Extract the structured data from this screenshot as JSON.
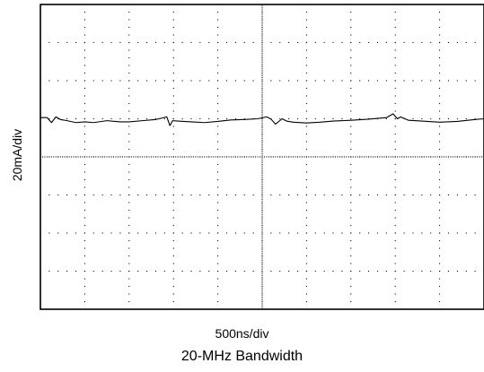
{
  "chart_data": {
    "type": "line",
    "title": "",
    "caption": "20-MHz Bandwidth",
    "xlabel": "500ns/div",
    "ylabel": "20mA/div",
    "x_divisions": 10,
    "y_divisions": 8,
    "xlim": [
      0,
      10
    ],
    "ylim": [
      -4,
      4
    ],
    "grid": true,
    "series": [
      {
        "color": "#000000",
        "x": [
          0.0,
          0.15,
          0.25,
          0.35,
          0.45,
          0.6,
          0.8,
          1.0,
          1.2,
          1.5,
          1.8,
          2.0,
          2.3,
          2.6,
          2.85,
          2.92,
          2.98,
          3.1,
          3.4,
          3.7,
          4.0,
          4.3,
          4.6,
          4.9,
          5.1,
          5.2,
          5.3,
          5.45,
          5.55,
          5.7,
          6.0,
          6.3,
          6.6,
          7.0,
          7.4,
          7.8,
          7.95,
          8.05,
          8.12,
          8.3,
          8.6,
          9.0,
          9.4,
          9.8,
          10.0
        ],
        "values": [
          1.03,
          1.03,
          0.9,
          1.05,
          0.98,
          0.95,
          0.9,
          0.92,
          0.9,
          0.95,
          0.92,
          0.92,
          0.95,
          0.98,
          1.05,
          0.82,
          0.95,
          0.94,
          0.92,
          0.9,
          0.93,
          0.97,
          0.98,
          1.0,
          1.05,
          0.99,
          0.86,
          1.0,
          0.94,
          0.91,
          0.89,
          0.91,
          0.94,
          0.96,
          0.99,
          1.03,
          1.13,
          1.0,
          1.05,
          0.96,
          0.94,
          0.91,
          0.93,
          0.98,
          1.0
        ]
      }
    ]
  }
}
